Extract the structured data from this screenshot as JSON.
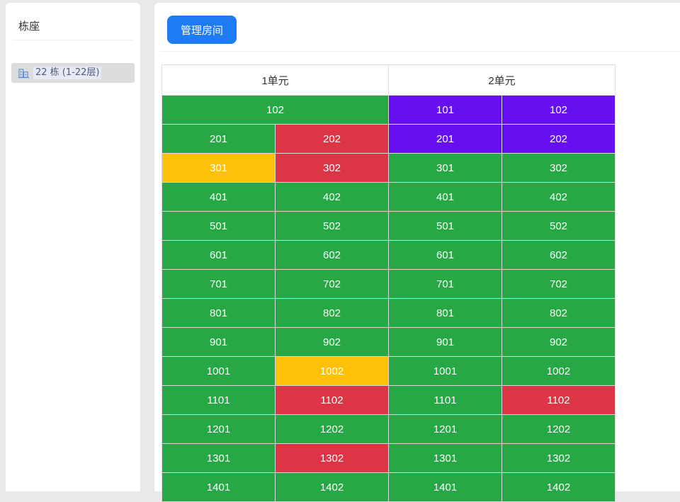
{
  "sidebar": {
    "title": "栋座",
    "building_label": "22 栋 (1-22层)"
  },
  "toolbar": {
    "manage_label": "管理房间"
  },
  "colors": {
    "vacant": "#28a745",
    "occupied": "#dc3545",
    "reserved": "#ffc107",
    "special": "#6610f2",
    "button": "#1f7bf2"
  },
  "units": [
    "1单元",
    "2单元"
  ],
  "floors": [
    [
      {
        "label": "102",
        "color": "green",
        "span": 2
      },
      {
        "label": "101",
        "color": "purple"
      },
      {
        "label": "102",
        "color": "purple"
      }
    ],
    [
      {
        "label": "201",
        "color": "green"
      },
      {
        "label": "202",
        "color": "red"
      },
      {
        "label": "201",
        "color": "purple"
      },
      {
        "label": "202",
        "color": "purple"
      }
    ],
    [
      {
        "label": "301",
        "color": "yellow"
      },
      {
        "label": "302",
        "color": "red"
      },
      {
        "label": "301",
        "color": "green"
      },
      {
        "label": "302",
        "color": "green"
      }
    ],
    [
      {
        "label": "401",
        "color": "green"
      },
      {
        "label": "402",
        "color": "green"
      },
      {
        "label": "401",
        "color": "green"
      },
      {
        "label": "402",
        "color": "green"
      }
    ],
    [
      {
        "label": "501",
        "color": "green"
      },
      {
        "label": "502",
        "color": "green"
      },
      {
        "label": "501",
        "color": "green"
      },
      {
        "label": "502",
        "color": "green"
      }
    ],
    [
      {
        "label": "601",
        "color": "green"
      },
      {
        "label": "602",
        "color": "green"
      },
      {
        "label": "601",
        "color": "green"
      },
      {
        "label": "602",
        "color": "green"
      }
    ],
    [
      {
        "label": "701",
        "color": "green"
      },
      {
        "label": "702",
        "color": "green"
      },
      {
        "label": "701",
        "color": "green"
      },
      {
        "label": "702",
        "color": "green"
      }
    ],
    [
      {
        "label": "801",
        "color": "green"
      },
      {
        "label": "802",
        "color": "green"
      },
      {
        "label": "801",
        "color": "green"
      },
      {
        "label": "802",
        "color": "green"
      }
    ],
    [
      {
        "label": "901",
        "color": "green"
      },
      {
        "label": "902",
        "color": "green"
      },
      {
        "label": "901",
        "color": "green"
      },
      {
        "label": "902",
        "color": "green"
      }
    ],
    [
      {
        "label": "1001",
        "color": "green"
      },
      {
        "label": "1002",
        "color": "yellow"
      },
      {
        "label": "1001",
        "color": "green"
      },
      {
        "label": "1002",
        "color": "green"
      }
    ],
    [
      {
        "label": "1101",
        "color": "green"
      },
      {
        "label": "1102",
        "color": "red"
      },
      {
        "label": "1101",
        "color": "green"
      },
      {
        "label": "1102",
        "color": "red"
      }
    ],
    [
      {
        "label": "1201",
        "color": "green"
      },
      {
        "label": "1202",
        "color": "green"
      },
      {
        "label": "1201",
        "color": "green"
      },
      {
        "label": "1202",
        "color": "green"
      }
    ],
    [
      {
        "label": "1301",
        "color": "green"
      },
      {
        "label": "1302",
        "color": "red"
      },
      {
        "label": "1301",
        "color": "green"
      },
      {
        "label": "1302",
        "color": "green"
      }
    ],
    [
      {
        "label": "1401",
        "color": "green"
      },
      {
        "label": "1402",
        "color": "green"
      },
      {
        "label": "1401",
        "color": "green"
      },
      {
        "label": "1402",
        "color": "green"
      }
    ]
  ]
}
